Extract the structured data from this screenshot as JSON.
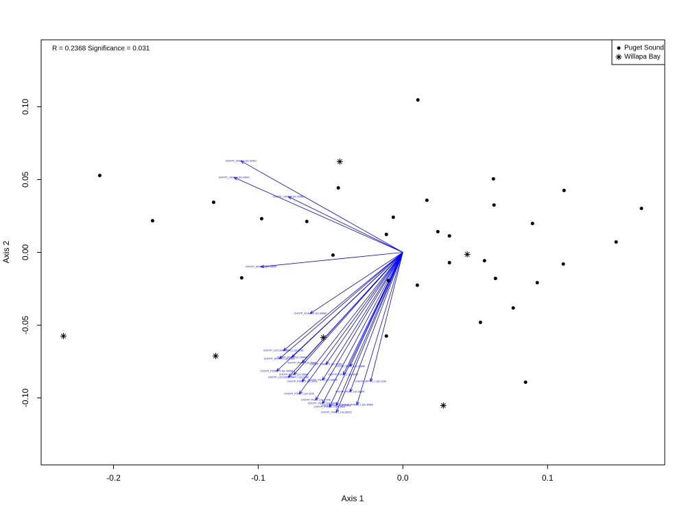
{
  "chart_data": {
    "type": "biplot",
    "annotation": "R = 0.2368 Significance = 0.031",
    "xlabel": "Axis 1",
    "ylabel": "Axis 2",
    "xlim": [
      -0.25,
      0.181
    ],
    "ylim": [
      -0.146,
      0.146
    ],
    "xticks": [
      -0.2,
      -0.1,
      {
        "value": 0,
        "label": "0.0"
      },
      0.1
    ],
    "yticks": [
      {
        "value": -0.1,
        "label": "-0.10"
      },
      -0.05,
      {
        "value": 0,
        "label": "0.00"
      },
      0.05,
      {
        "value": 0.1,
        "label": "0.10"
      }
    ],
    "legend": "upper right",
    "series": [
      {
        "name": "Puget Sound",
        "marker": "dot",
        "color": "#000000",
        "x": [
          -0.2095,
          -0.173,
          -0.1308,
          -0.0976,
          -0.1114,
          -0.0664,
          -0.0483,
          -0.0446,
          -0.0114,
          -0.0066,
          -0.01,
          -0.0114,
          0.0104,
          0.01,
          0.0166,
          0.0242,
          0.0322,
          0.0322,
          0.0564,
          0.0536,
          0.0626,
          0.063,
          0.064,
          0.0763,
          0.0896,
          0.0929,
          0.0848,
          0.1114,
          0.1109,
          0.1474,
          0.1649
        ],
        "y": [
          0.0528,
          0.0217,
          0.0344,
          0.0231,
          -0.0175,
          0.0212,
          -0.0019,
          0.0443,
          0.0123,
          0.0241,
          -0.0194,
          -0.0575,
          0.1047,
          -0.0226,
          0.0358,
          0.0142,
          0.0113,
          -0.0071,
          -0.0057,
          -0.0481,
          0.0505,
          0.0325,
          -0.0179,
          -0.0382,
          0.0198,
          -0.0208,
          -0.0892,
          0.0425,
          -0.008,
          0.0071,
          0.0302
        ]
      },
      {
        "name": "Willapa Bay",
        "marker": "star",
        "color": "#000000",
        "x": [
          -0.2346,
          -0.1294,
          -0.055,
          -0.0436,
          0.0445,
          0.028
        ],
        "y": [
          -0.0575,
          -0.0712,
          -0.0585,
          0.0623,
          -0.0014,
          -0.1052
        ]
      }
    ],
    "arrows": {
      "color": "#0000ff",
      "labels": [
        "CHOYP_CAH2.1.1|m.42991",
        "CHOYP_CAH2.1.1|m.43091",
        "CHOYP_CAH2.1.1|m.42981",
        "CHOYP_ADA6.1.1|m.35649",
        "CHOYP_ACAA2.1.1|m.39680",
        "CHOYP_LOC100893884.1.1|m.5181",
        "CHOYP_HSP70.1.1|m.1822",
        "CHOYP_PSA.1.1|m.26840",
        "CHOYP_PSA.1.1|m.26841",
        "CHOYP_PSMA1.1.1|m.30958",
        "CHOYP_PSA.1.1|m.26842",
        "CHOYP_LOC100893884.1.1|m.5182",
        "CHOYP_PSMB.1.1|m.3301",
        "CHOYP_PSA.1.1|m.26845",
        "CHOYP_PSMD.1.1|m.4410",
        "CHOYP_PSA.1.1|m.26846",
        "CHOYP_PSMA2.1.1|m.30960",
        "CHOYP_MPTTL.1.1|m.1230",
        "CHOYP_PSA.1.1|m.26847",
        "CHOYP_PCKB.1.1|m.3220",
        "CHOYP_PSA.1.1|m.27206",
        "CHOYP_PSA.1.1|m.26843",
        "CHOYP_PSA.1.1|m.26844",
        "CHOYP_PSA1.1.1|m.36223",
        "CHOYP_PSMA3.1.1|m.30962",
        "CHOYP_PSMB2.1.1|m.3302"
      ],
      "x": [
        -0.1118,
        -0.1166,
        -0.0791,
        -0.0981,
        -0.064,
        -0.0825,
        -0.0853,
        -0.0768,
        -0.0697,
        -0.0872,
        -0.0754,
        -0.0791,
        -0.0697,
        -0.0555,
        -0.0412,
        -0.0365,
        -0.0531,
        -0.0223,
        -0.0365,
        -0.0716,
        -0.0602,
        -0.0555,
        -0.046,
        -0.046,
        -0.0318,
        -0.0507
      ],
      "y": [
        0.0627,
        0.0514,
        0.0382,
        -0.0099,
        -0.042,
        -0.0675,
        -0.0731,
        -0.0722,
        -0.0759,
        -0.0816,
        -0.084,
        -0.0858,
        -0.0887,
        -0.0877,
        -0.084,
        -0.0783,
        -0.0769,
        -0.0887,
        -0.0958,
        -0.0972,
        -0.1014,
        -0.1038,
        -0.1052,
        -0.1099,
        -0.1047,
        -0.1061
      ]
    }
  }
}
